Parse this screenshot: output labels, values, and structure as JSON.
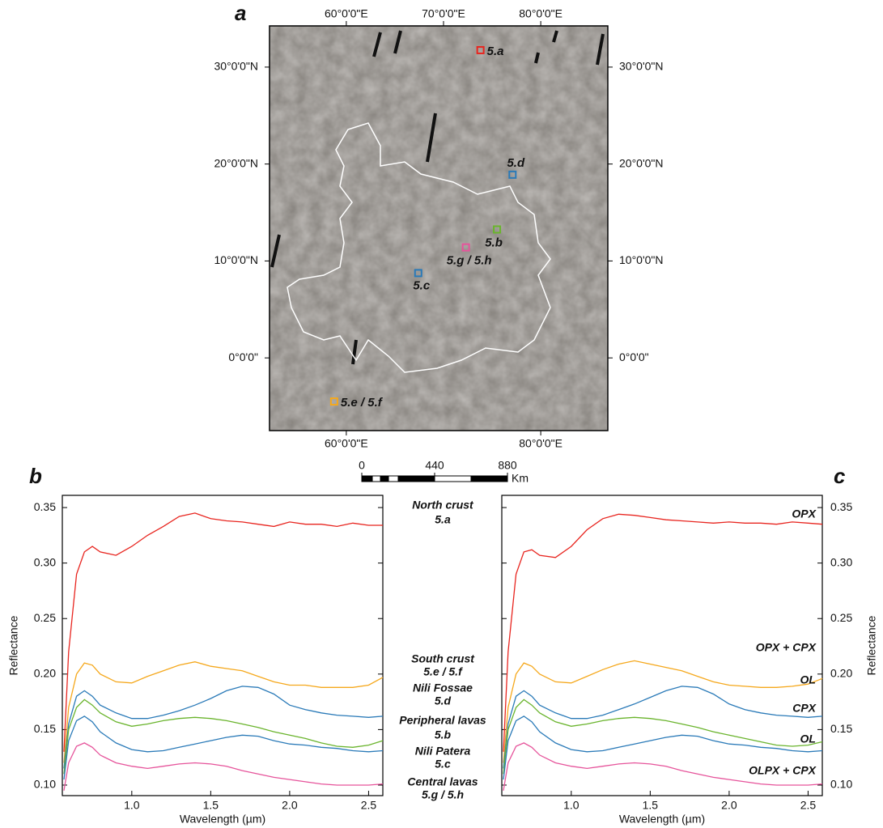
{
  "map": {
    "label": "a",
    "xlim": [
      52.1,
      86.9
    ],
    "ylim": [
      -7.5,
      34.25
    ],
    "lon_ticks_top": [
      {
        "value": 60,
        "label": "60°0'0\"E"
      },
      {
        "value": 70,
        "label": "70°0'0\"E"
      },
      {
        "value": 80,
        "label": "80°0'0\"E"
      }
    ],
    "lon_ticks_bottom": [
      {
        "value": 60,
        "label": "60°0'0\"E"
      },
      {
        "value": 80,
        "label": "80°0'0\"E"
      }
    ],
    "lat_ticks": [
      {
        "value": 30,
        "label": "30°0'0\"N"
      },
      {
        "value": 20,
        "label": "20°0'0\"N"
      },
      {
        "value": 10,
        "label": "10°0'0\"N"
      },
      {
        "value": 0,
        "label": "0°0'0\""
      }
    ],
    "sites": [
      {
        "label": "5.a",
        "color": "#e8251f",
        "lon": 73.8,
        "lat": 31.75
      },
      {
        "label": "5.d",
        "color": "#2a7ab8",
        "lon": 77.1,
        "lat": 18.9
      },
      {
        "label": "5.b",
        "color": "#6ab42d",
        "lon": 75.5,
        "lat": 13.25
      },
      {
        "label": "5.g / 5.h",
        "color": "#e6549b",
        "lon": 72.3,
        "lat": 11.4
      },
      {
        "label": "5.c",
        "color": "#2a7ab8",
        "lon": 67.4,
        "lat": 8.75
      },
      {
        "label": "5.e / 5.f",
        "color": "#f5a81c",
        "lon": 58.75,
        "lat": -4.5
      }
    ],
    "scale_lim": [
      0,
      880
    ],
    "scale_ticks": [
      0,
      440,
      880
    ],
    "scale_unit": "Km"
  },
  "chart_data": [
    {
      "type": "line",
      "label": "b",
      "xlabel": "Wavelength (µm)",
      "ylabel": "Reflectance",
      "xlim": [
        0.56,
        2.59
      ],
      "ylim": [
        0.0905,
        0.361
      ],
      "xticks": [
        {
          "value": 1,
          "label": "1.0"
        },
        1.5,
        {
          "value": 2,
          "label": "2.0"
        },
        2.5
      ],
      "yticks": [
        {
          "value": 0.1,
          "label": "0.10"
        },
        0.15,
        {
          "value": 0.2,
          "label": "0.20"
        },
        0.25,
        {
          "value": 0.3,
          "label": "0.30"
        },
        0.35
      ],
      "x": [
        0.57,
        0.6,
        0.65,
        0.7,
        0.75,
        0.8,
        0.9,
        1.0,
        1.1,
        1.2,
        1.3,
        1.4,
        1.5,
        1.6,
        1.7,
        1.8,
        1.9,
        2.0,
        2.1,
        2.2,
        2.3,
        2.4,
        2.5,
        2.59
      ],
      "series": [
        {
          "name": "North crust",
          "site": "5.a",
          "color": "#e8251f",
          "values": [
            0.13,
            0.22,
            0.29,
            0.31,
            0.315,
            0.31,
            0.307,
            0.315,
            0.325,
            0.333,
            0.342,
            0.345,
            0.34,
            0.338,
            0.337,
            0.335,
            0.333,
            0.337,
            0.335,
            0.335,
            0.333,
            0.336,
            0.334,
            0.334
          ]
        },
        {
          "name": "South crust",
          "site": "5.e / 5.f",
          "color": "#f5a81c",
          "values": [
            0.12,
            0.17,
            0.2,
            0.21,
            0.208,
            0.2,
            0.193,
            0.192,
            0.198,
            0.203,
            0.208,
            0.211,
            0.207,
            0.205,
            0.203,
            0.198,
            0.193,
            0.19,
            0.19,
            0.188,
            0.188,
            0.188,
            0.19,
            0.197
          ]
        },
        {
          "name": "Nili Fossae",
          "site": "5.d",
          "color": "#2a7ab8",
          "values": [
            0.115,
            0.155,
            0.18,
            0.185,
            0.18,
            0.172,
            0.165,
            0.16,
            0.16,
            0.163,
            0.167,
            0.172,
            0.178,
            0.185,
            0.189,
            0.188,
            0.182,
            0.172,
            0.168,
            0.165,
            0.163,
            0.162,
            0.161,
            0.162
          ]
        },
        {
          "name": "Peripheral lavas",
          "site": "5.b",
          "color": "#6ab42d",
          "values": [
            0.11,
            0.15,
            0.17,
            0.177,
            0.172,
            0.165,
            0.157,
            0.153,
            0.155,
            0.158,
            0.16,
            0.161,
            0.16,
            0.158,
            0.155,
            0.152,
            0.148,
            0.145,
            0.142,
            0.138,
            0.135,
            0.134,
            0.136,
            0.14
          ]
        },
        {
          "name": "Nili Patera",
          "site": "5.c",
          "color": "#2a7ab8",
          "values": [
            0.105,
            0.14,
            0.158,
            0.162,
            0.157,
            0.148,
            0.138,
            0.132,
            0.13,
            0.131,
            0.134,
            0.137,
            0.14,
            0.143,
            0.145,
            0.144,
            0.14,
            0.137,
            0.136,
            0.134,
            0.133,
            0.131,
            0.13,
            0.131
          ]
        },
        {
          "name": "Central lavas",
          "site": "5.g / 5.h",
          "color": "#e6549b",
          "values": [
            0.095,
            0.12,
            0.135,
            0.138,
            0.134,
            0.127,
            0.12,
            0.117,
            0.115,
            0.117,
            0.119,
            0.12,
            0.119,
            0.117,
            0.113,
            0.11,
            0.107,
            0.105,
            0.103,
            0.101,
            0.1,
            0.1,
            0.1,
            0.101
          ]
        }
      ]
    },
    {
      "type": "line",
      "label": "c",
      "xlabel": "Wavelength (µm)",
      "ylabel": "Reflectance",
      "xlim": [
        0.56,
        2.59
      ],
      "ylim": [
        0.0905,
        0.361
      ],
      "xticks": [
        {
          "value": 1,
          "label": "1.0"
        },
        1.5,
        {
          "value": 2,
          "label": "2.0"
        },
        2.5
      ],
      "yticks": [
        {
          "value": 0.1,
          "label": "0.10"
        },
        0.15,
        {
          "value": 0.2,
          "label": "0.20"
        },
        0.25,
        {
          "value": 0.3,
          "label": "0.30"
        },
        0.35
      ],
      "x": [
        0.57,
        0.6,
        0.65,
        0.7,
        0.75,
        0.8,
        0.9,
        1.0,
        1.1,
        1.2,
        1.3,
        1.4,
        1.5,
        1.6,
        1.7,
        1.8,
        1.9,
        2.0,
        2.1,
        2.2,
        2.3,
        2.4,
        2.5,
        2.59
      ],
      "series": [
        {
          "name": "OPX",
          "color": "#e8251f",
          "values": [
            0.13,
            0.22,
            0.29,
            0.31,
            0.312,
            0.307,
            0.305,
            0.315,
            0.33,
            0.34,
            0.344,
            0.343,
            0.341,
            0.339,
            0.338,
            0.337,
            0.336,
            0.337,
            0.336,
            0.336,
            0.335,
            0.337,
            0.336,
            0.335
          ]
        },
        {
          "name": "OPX + CPX",
          "color": "#f5a81c",
          "values": [
            0.12,
            0.17,
            0.2,
            0.21,
            0.207,
            0.2,
            0.193,
            0.192,
            0.198,
            0.204,
            0.209,
            0.212,
            0.209,
            0.206,
            0.203,
            0.198,
            0.193,
            0.19,
            0.189,
            0.188,
            0.188,
            0.189,
            0.191,
            0.196
          ]
        },
        {
          "name": "OL",
          "color": "#2a7ab8",
          "values": [
            0.115,
            0.155,
            0.18,
            0.185,
            0.18,
            0.172,
            0.165,
            0.16,
            0.16,
            0.163,
            0.168,
            0.173,
            0.179,
            0.185,
            0.189,
            0.188,
            0.182,
            0.173,
            0.168,
            0.165,
            0.163,
            0.162,
            0.161,
            0.162
          ]
        },
        {
          "name": "CPX",
          "color": "#6ab42d",
          "values": [
            0.11,
            0.15,
            0.17,
            0.177,
            0.172,
            0.165,
            0.157,
            0.153,
            0.155,
            0.158,
            0.16,
            0.161,
            0.16,
            0.158,
            0.155,
            0.152,
            0.148,
            0.145,
            0.142,
            0.139,
            0.136,
            0.135,
            0.136,
            0.139
          ]
        },
        {
          "name": "OL",
          "color": "#2a7ab8",
          "values": [
            0.105,
            0.14,
            0.158,
            0.162,
            0.157,
            0.148,
            0.138,
            0.132,
            0.13,
            0.131,
            0.134,
            0.137,
            0.14,
            0.143,
            0.145,
            0.144,
            0.14,
            0.137,
            0.136,
            0.134,
            0.133,
            0.131,
            0.13,
            0.131
          ]
        },
        {
          "name": "OLPX + CPX",
          "color": "#e6549b",
          "values": [
            0.095,
            0.12,
            0.135,
            0.138,
            0.134,
            0.127,
            0.12,
            0.117,
            0.115,
            0.117,
            0.119,
            0.12,
            0.119,
            0.117,
            0.113,
            0.11,
            0.107,
            0.105,
            0.103,
            0.101,
            0.1,
            0.1,
            0.1,
            0.101
          ]
        }
      ]
    }
  ]
}
